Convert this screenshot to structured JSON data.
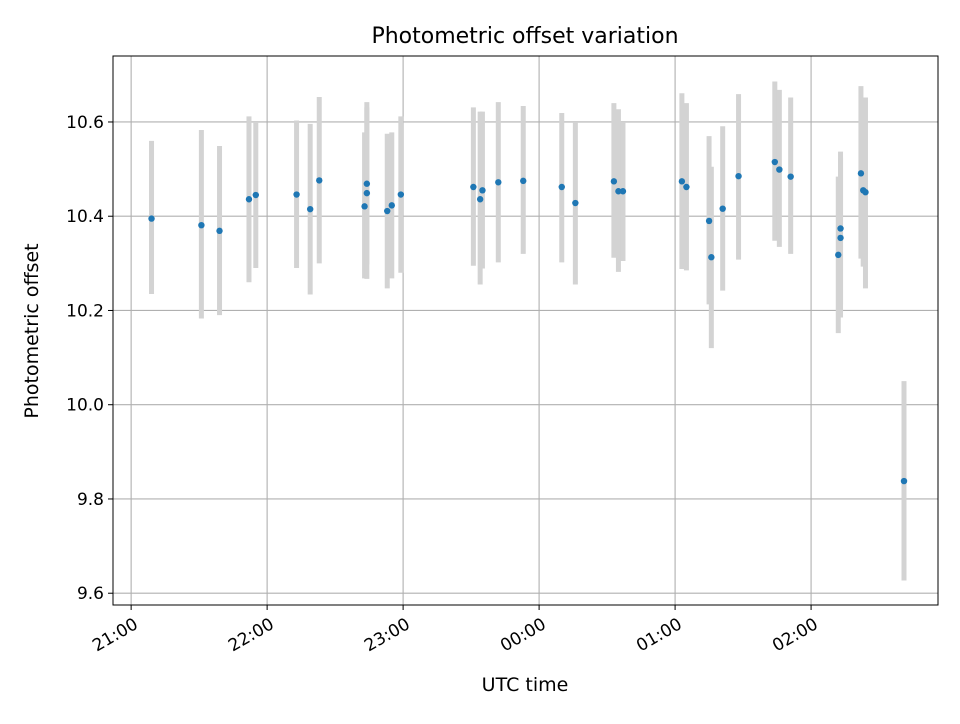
{
  "chart_data": {
    "type": "scatter",
    "title": "Photometric offset variation",
    "xlabel": "UTC time",
    "ylabel": "Photometric offset",
    "grid": true,
    "xlim": [
      "20:52",
      "02:56"
    ],
    "ylim": [
      9.575,
      10.74
    ],
    "x_ticks": [
      "21:00",
      "22:00",
      "23:00",
      "00:00",
      "01:00",
      "02:00"
    ],
    "y_ticks": [
      "9.6",
      "9.8",
      "10.0",
      "10.2",
      "10.4",
      "10.6"
    ],
    "marker_color": "#1f77b4",
    "errorbar_color": "#d3d3d3",
    "series": [
      {
        "points": [
          {
            "x": "21:09",
            "y": 10.395,
            "ylo": 10.235,
            "yhi": 10.56
          },
          {
            "x": "21:31",
            "y": 10.381,
            "ylo": 10.183,
            "yhi": 10.583
          },
          {
            "x": "21:39",
            "y": 10.369,
            "ylo": 10.19,
            "yhi": 10.549
          },
          {
            "x": "21:52",
            "y": 10.436,
            "ylo": 10.26,
            "yhi": 10.612
          },
          {
            "x": "21:55",
            "y": 10.445,
            "ylo": 10.29,
            "yhi": 10.6
          },
          {
            "x": "22:13",
            "y": 10.446,
            "ylo": 10.29,
            "yhi": 10.603
          },
          {
            "x": "22:19",
            "y": 10.415,
            "ylo": 10.234,
            "yhi": 10.596
          },
          {
            "x": "22:23",
            "y": 10.476,
            "ylo": 10.3,
            "yhi": 10.653
          },
          {
            "x": "22:43",
            "y": 10.421,
            "ylo": 10.268,
            "yhi": 10.578
          },
          {
            "x": "22:44",
            "y": 10.469,
            "ylo": 10.298,
            "yhi": 10.642
          },
          {
            "x": "22:44",
            "y": 10.449,
            "ylo": 10.267,
            "yhi": 10.631
          },
          {
            "x": "22:53",
            "y": 10.411,
            "ylo": 10.247,
            "yhi": 10.575
          },
          {
            "x": "22:55",
            "y": 10.423,
            "ylo": 10.268,
            "yhi": 10.578
          },
          {
            "x": "22:59",
            "y": 10.446,
            "ylo": 10.28,
            "yhi": 10.612
          },
          {
            "x": "23:31",
            "y": 10.462,
            "ylo": 10.295,
            "yhi": 10.631
          },
          {
            "x": "23:34",
            "y": 10.436,
            "ylo": 10.255,
            "yhi": 10.622
          },
          {
            "x": "23:35",
            "y": 10.455,
            "ylo": 10.289,
            "yhi": 10.622
          },
          {
            "x": "23:42",
            "y": 10.472,
            "ylo": 10.302,
            "yhi": 10.642
          },
          {
            "x": "23:53",
            "y": 10.475,
            "ylo": 10.32,
            "yhi": 10.634
          },
          {
            "x": "00:10",
            "y": 10.462,
            "ylo": 10.302,
            "yhi": 10.619
          },
          {
            "x": "00:16",
            "y": 10.428,
            "ylo": 10.255,
            "yhi": 10.598
          },
          {
            "x": "00:33",
            "y": 10.474,
            "ylo": 10.312,
            "yhi": 10.64
          },
          {
            "x": "00:35",
            "y": 10.453,
            "ylo": 10.282,
            "yhi": 10.627
          },
          {
            "x": "00:37",
            "y": 10.453,
            "ylo": 10.305,
            "yhi": 10.598
          },
          {
            "x": "01:03",
            "y": 10.474,
            "ylo": 10.288,
            "yhi": 10.661
          },
          {
            "x": "01:05",
            "y": 10.462,
            "ylo": 10.285,
            "yhi": 10.64
          },
          {
            "x": "01:15",
            "y": 10.39,
            "ylo": 10.213,
            "yhi": 10.57
          },
          {
            "x": "01:16",
            "y": 10.313,
            "ylo": 10.12,
            "yhi": 10.505
          },
          {
            "x": "01:21",
            "y": 10.416,
            "ylo": 10.242,
            "yhi": 10.591
          },
          {
            "x": "01:28",
            "y": 10.485,
            "ylo": 10.308,
            "yhi": 10.659
          },
          {
            "x": "01:44",
            "y": 10.515,
            "ylo": 10.348,
            "yhi": 10.686
          },
          {
            "x": "01:46",
            "y": 10.499,
            "ylo": 10.335,
            "yhi": 10.668
          },
          {
            "x": "01:51",
            "y": 10.484,
            "ylo": 10.32,
            "yhi": 10.652
          },
          {
            "x": "02:12",
            "y": 10.318,
            "ylo": 10.152,
            "yhi": 10.484
          },
          {
            "x": "02:13",
            "y": 10.354,
            "ylo": 10.185,
            "yhi": 10.525
          },
          {
            "x": "02:13",
            "y": 10.374,
            "ylo": 10.213,
            "yhi": 10.537
          },
          {
            "x": "02:22",
            "y": 10.491,
            "ylo": 10.31,
            "yhi": 10.676
          },
          {
            "x": "02:23",
            "y": 10.455,
            "ylo": 10.293,
            "yhi": 10.614
          },
          {
            "x": "02:24",
            "y": 10.451,
            "ylo": 10.247,
            "yhi": 10.652
          },
          {
            "x": "02:41",
            "y": 9.838,
            "ylo": 9.627,
            "yhi": 10.05
          }
        ]
      }
    ]
  }
}
